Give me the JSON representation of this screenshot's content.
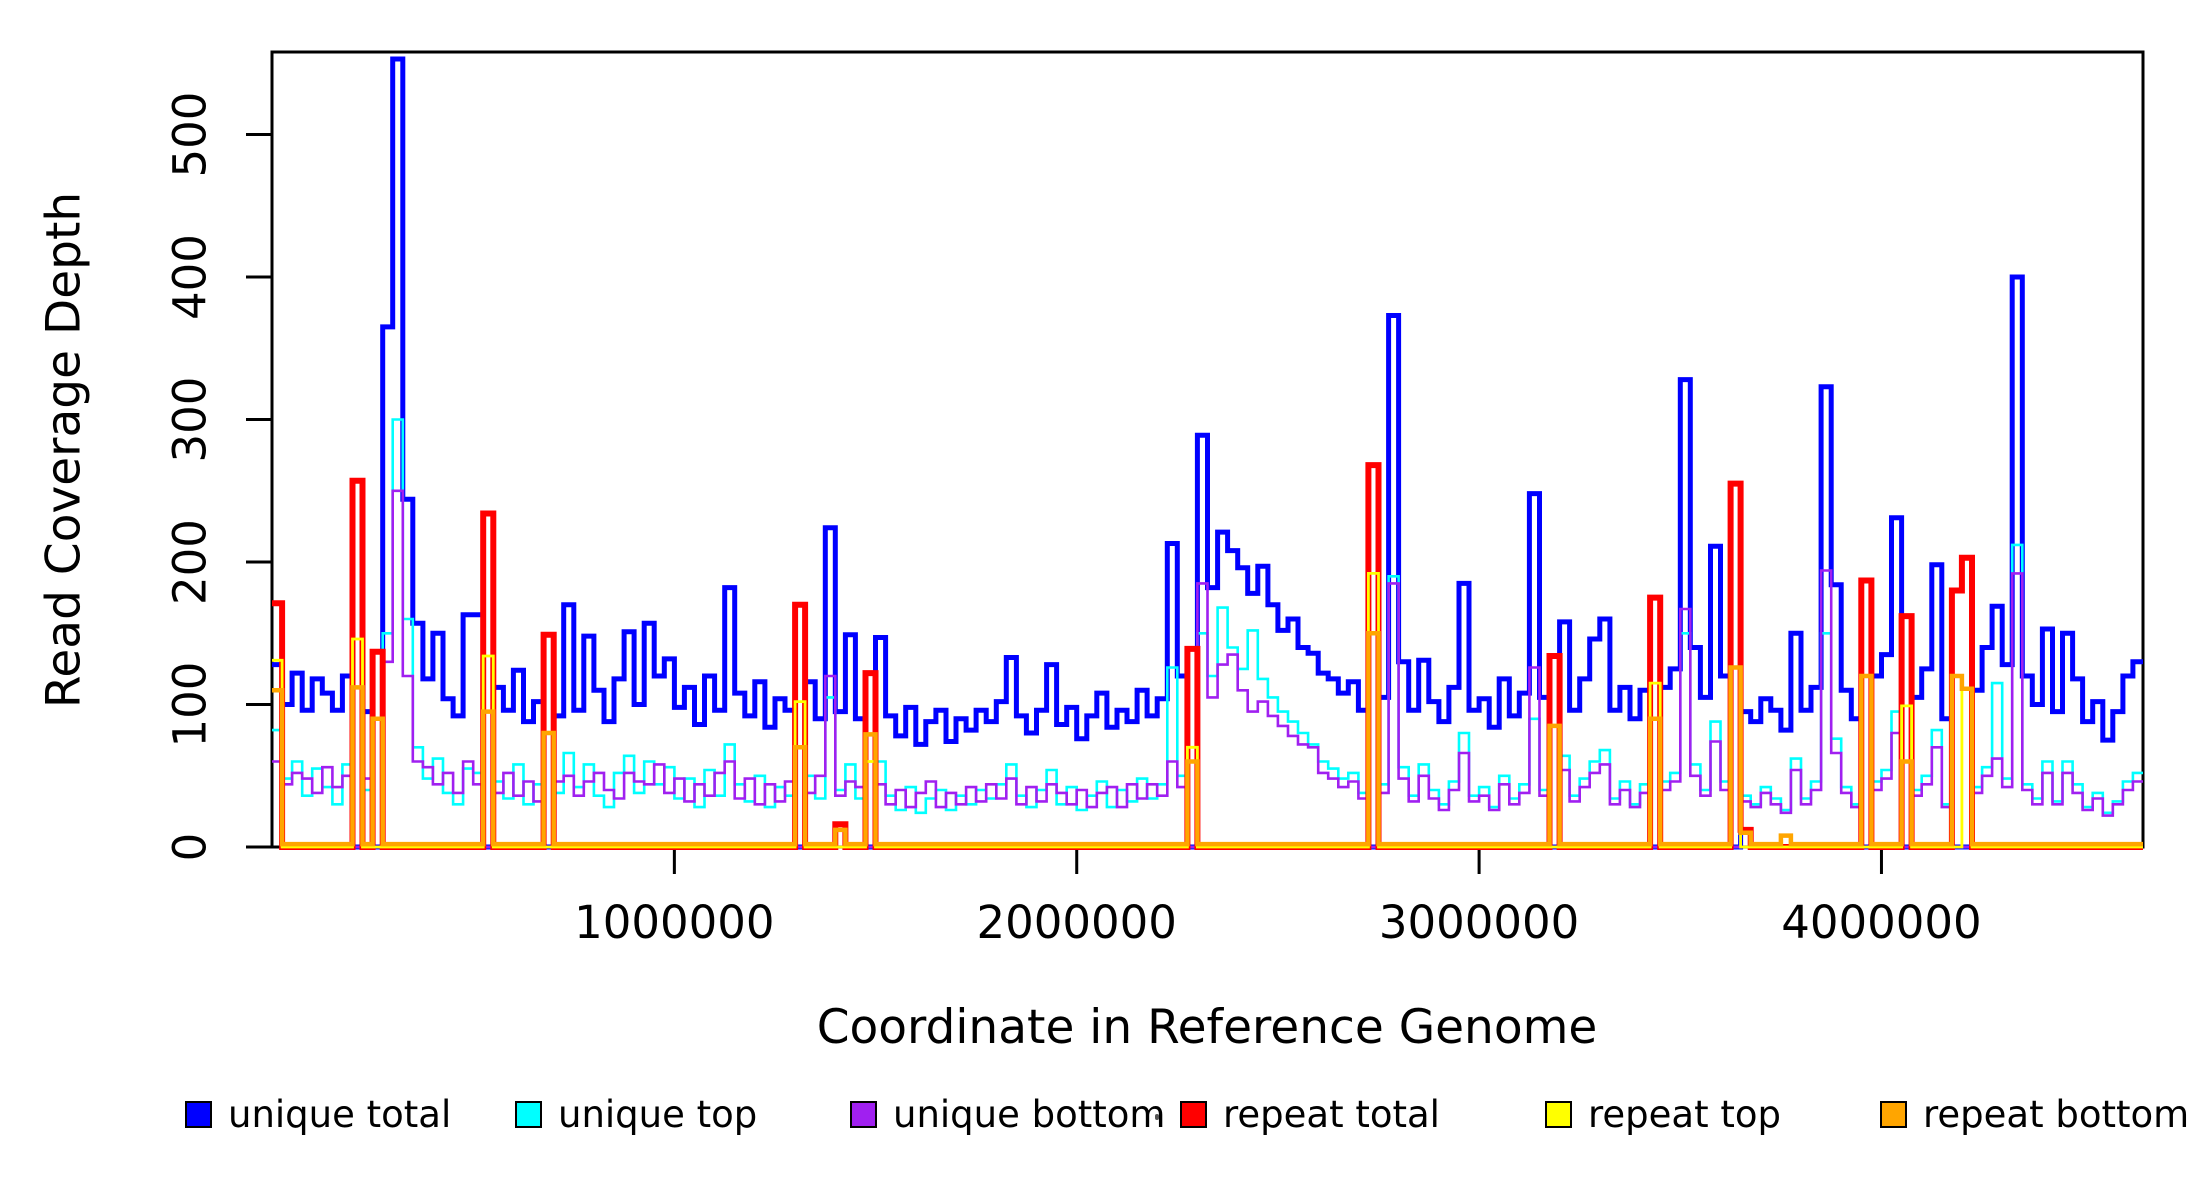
{
  "figure": {
    "background": "#FFFFFF"
  },
  "axes": {
    "x_title": "Coordinate in Reference Genome",
    "y_title": "Read Coverage Depth",
    "x_ticks": [
      1000000,
      2000000,
      3000000,
      4000000
    ],
    "x_tick_labels": [
      "1000000",
      "2000000",
      "3000000",
      "4000000"
    ],
    "y_ticks": [
      0,
      100,
      200,
      300,
      400,
      500
    ],
    "y_tick_labels": [
      "0",
      "100",
      "200",
      "300",
      "400",
      "500"
    ],
    "xlim": [
      0,
      4650000
    ],
    "ylim": [
      0,
      558
    ]
  },
  "legend": {
    "items": [
      {
        "name": "unique-total",
        "label": "unique total",
        "color": "#0000FF"
      },
      {
        "name": "unique-top",
        "label": "unique top",
        "color": "#00FFFF"
      },
      {
        "name": "unique-bottom",
        "label": "unique bottom",
        "color": "#A020F0"
      },
      {
        "name": "repeat-total",
        "label": "repeat total",
        "color": "#FF0000"
      },
      {
        "name": "repeat-top",
        "label": "repeat top",
        "color": "#FFFF00"
      },
      {
        "name": "repeat-bottom",
        "label": "repeat bottom",
        "color": "#FFA500"
      }
    ]
  },
  "chart_data": {
    "type": "line",
    "style": "step",
    "bin_size": 25000,
    "n_bins": 186,
    "x_start": 0,
    "grid": false,
    "legend_position": "bottom",
    "series": [
      {
        "name": "unique total",
        "color": "#0000FF",
        "lwd": 5,
        "values": [
          128,
          100,
          122,
          96,
          118,
          108,
          96,
          120,
          0,
          95,
          0,
          365,
          553,
          244,
          157,
          118,
          150,
          104,
          92,
          163,
          163,
          0,
          112,
          96,
          124,
          88,
          102,
          0,
          92,
          170,
          96,
          148,
          110,
          88,
          118,
          151,
          100,
          157,
          120,
          132,
          98,
          112,
          86,
          120,
          96,
          182,
          108,
          92,
          116,
          84,
          104,
          96,
          0,
          116,
          90,
          224,
          95,
          149,
          90,
          0,
          147,
          92,
          78,
          98,
          72,
          88,
          96,
          74,
          90,
          82,
          96,
          88,
          102,
          133,
          92,
          80,
          96,
          128,
          86,
          98,
          76,
          92,
          108,
          84,
          96,
          88,
          110,
          92,
          104,
          213,
          120,
          0,
          289,
          182,
          221,
          208,
          196,
          178,
          197,
          170,
          152,
          160,
          140,
          136,
          122,
          118,
          108,
          116,
          96,
          0,
          105,
          373,
          130,
          96,
          131,
          102,
          88,
          112,
          185,
          96,
          104,
          84,
          118,
          92,
          108,
          248,
          105,
          0,
          158,
          96,
          118,
          146,
          160,
          96,
          112,
          90,
          110,
          0,
          112,
          125,
          328,
          140,
          105,
          211,
          120,
          0,
          95,
          88,
          104,
          96,
          82,
          150,
          96,
          112,
          323,
          184,
          110,
          90,
          0,
          120,
          135,
          231,
          0,
          105,
          125,
          198,
          90,
          0,
          0,
          110,
          140,
          169,
          128,
          400,
          120,
          100,
          153,
          95,
          150,
          118,
          88,
          102,
          75,
          95,
          120,
          130
        ]
      },
      {
        "name": "unique top",
        "color": "#00FFFF",
        "lwd": 2.6,
        "values": [
          82,
          48,
          60,
          36,
          55,
          42,
          30,
          58,
          0,
          40,
          0,
          150,
          300,
          160,
          70,
          48,
          62,
          38,
          30,
          55,
          52,
          0,
          46,
          34,
          58,
          30,
          44,
          0,
          38,
          66,
          42,
          58,
          36,
          28,
          52,
          64,
          38,
          60,
          44,
          56,
          34,
          48,
          28,
          54,
          36,
          72,
          44,
          32,
          50,
          28,
          42,
          36,
          0,
          50,
          34,
          105,
          40,
          58,
          34,
          0,
          60,
          36,
          26,
          42,
          24,
          34,
          40,
          26,
          36,
          30,
          40,
          34,
          44,
          58,
          36,
          28,
          40,
          54,
          30,
          42,
          26,
          36,
          46,
          28,
          40,
          32,
          48,
          34,
          44,
          126,
          50,
          0,
          150,
          120,
          168,
          140,
          125,
          152,
          118,
          105,
          95,
          88,
          80,
          72,
          60,
          55,
          48,
          52,
          38,
          0,
          44,
          190,
          56,
          36,
          58,
          40,
          30,
          46,
          80,
          36,
          42,
          28,
          50,
          34,
          44,
          90,
          40,
          0,
          64,
          36,
          48,
          60,
          68,
          34,
          46,
          30,
          44,
          0,
          46,
          52,
          150,
          58,
          40,
          88,
          46,
          0,
          36,
          30,
          42,
          34,
          26,
          62,
          34,
          46,
          150,
          76,
          42,
          30,
          0,
          46,
          54,
          95,
          0,
          40,
          50,
          82,
          30,
          0,
          0,
          42,
          56,
          115,
          48,
          212,
          44,
          34,
          60,
          32,
          60,
          44,
          28,
          38,
          24,
          32,
          46,
          52
        ]
      },
      {
        "name": "unique bottom",
        "color": "#A020F0",
        "lwd": 2.6,
        "values": [
          60,
          44,
          52,
          48,
          38,
          56,
          42,
          50,
          0,
          48,
          0,
          130,
          250,
          120,
          60,
          56,
          44,
          52,
          38,
          60,
          44,
          0,
          38,
          52,
          36,
          46,
          32,
          0,
          46,
          50,
          36,
          46,
          52,
          40,
          34,
          52,
          46,
          44,
          58,
          38,
          48,
          32,
          44,
          36,
          52,
          60,
          34,
          48,
          30,
          44,
          32,
          46,
          0,
          38,
          50,
          120,
          36,
          46,
          42,
          0,
          44,
          30,
          40,
          28,
          38,
          46,
          28,
          38,
          30,
          42,
          32,
          44,
          34,
          48,
          30,
          42,
          32,
          44,
          38,
          30,
          40,
          28,
          38,
          42,
          28,
          44,
          34,
          44,
          36,
          60,
          42,
          0,
          185,
          105,
          128,
          135,
          110,
          95,
          102,
          92,
          85,
          78,
          72,
          70,
          52,
          48,
          42,
          46,
          34,
          0,
          38,
          185,
          48,
          32,
          50,
          34,
          26,
          40,
          66,
          32,
          36,
          26,
          44,
          30,
          38,
          126,
          36,
          0,
          54,
          32,
          42,
          52,
          58,
          30,
          40,
          28,
          38,
          0,
          40,
          46,
          167,
          50,
          36,
          74,
          40,
          0,
          32,
          28,
          38,
          30,
          24,
          54,
          30,
          40,
          194,
          66,
          38,
          28,
          0,
          40,
          48,
          80,
          0,
          36,
          44,
          70,
          28,
          0,
          0,
          38,
          50,
          62,
          42,
          192,
          40,
          30,
          52,
          30,
          52,
          38,
          26,
          34,
          22,
          30,
          40,
          46
        ]
      },
      {
        "name": "repeat total",
        "color": "#FF0000",
        "lwd": 6,
        "baseline": 0,
        "values_sparse": {
          "0": 171,
          "8": 257,
          "10": 137,
          "21": 234,
          "27": 149,
          "52": 170,
          "56": 16,
          "59": 122,
          "91": 139,
          "109": 268,
          "127": 134,
          "137": 175,
          "145": 255,
          "146": 12,
          "158": 187,
          "162": 162,
          "167": 180,
          "168": 203
        }
      },
      {
        "name": "repeat top",
        "color": "#FFFF00",
        "lwd": 2.8,
        "baseline": 0,
        "values_sparse": {
          "0": 131,
          "8": 146,
          "21": 134,
          "52": 102,
          "59": 60,
          "91": 70,
          "109": 192,
          "137": 115,
          "145": 126,
          "162": 99,
          "168": 111
        }
      },
      {
        "name": "repeat bottom",
        "color": "#FFA500",
        "lwd": 4.5,
        "baseline": 2,
        "values_sparse": {
          "0": 110,
          "8": 112,
          "10": 90,
          "21": 95,
          "27": 80,
          "52": 70,
          "56": 12,
          "59": 79,
          "91": 60,
          "109": 150,
          "127": 85,
          "137": 90,
          "145": 126,
          "146": 10,
          "150": 8,
          "158": 120,
          "162": 60,
          "167": 120,
          "168": 111
        }
      }
    ]
  }
}
